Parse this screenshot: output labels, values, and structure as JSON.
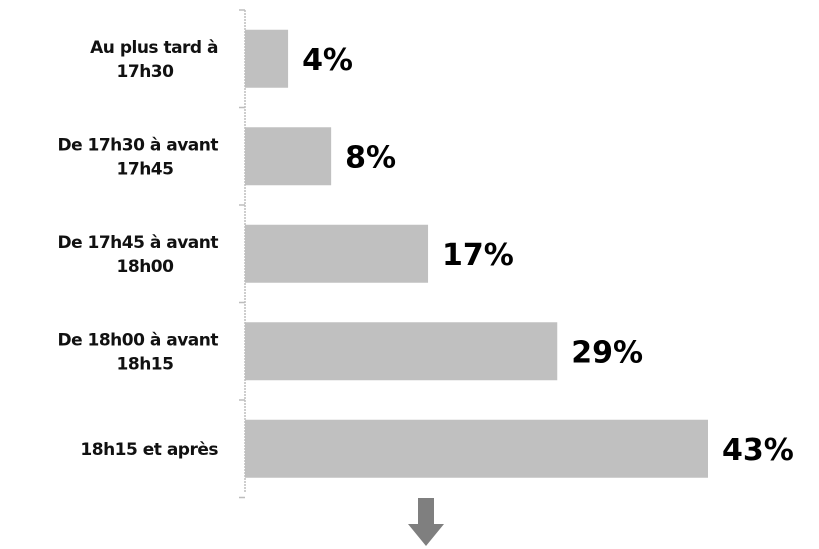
{
  "chart_data": {
    "type": "bar",
    "orientation": "horizontal",
    "categories": [
      [
        "Au plus tard à",
        "17h30"
      ],
      [
        "De 17h30 à avant",
        "17h45"
      ],
      [
        "De 17h45 à avant",
        "18h00"
      ],
      [
        "De 18h00 à avant",
        "18h15"
      ],
      [
        "18h15 et après"
      ]
    ],
    "values": [
      4,
      8,
      17,
      29,
      43
    ],
    "value_labels": [
      "4%",
      "8%",
      "17%",
      "29%",
      "43%"
    ],
    "xlim": [
      0,
      43
    ],
    "grid": false,
    "colors": {
      "bar": "#c0c0c0",
      "axis": "#bdbdbd",
      "arrow": "#7f7f7f"
    }
  },
  "decorations": {
    "arrow_icon": "down-arrow-icon"
  }
}
